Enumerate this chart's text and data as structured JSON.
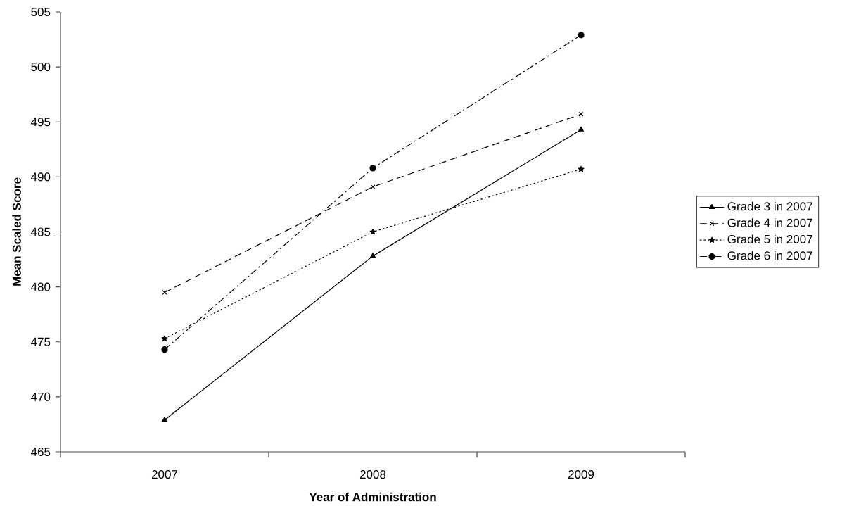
{
  "chart_data": {
    "type": "line",
    "xlabel": "Year of Administration",
    "ylabel": "Mean Scaled Score",
    "categories": [
      "2007",
      "2008",
      "2009"
    ],
    "ylim": [
      465,
      505
    ],
    "yticks": [
      465,
      470,
      475,
      480,
      485,
      490,
      495,
      500,
      505
    ],
    "legend": "right",
    "grid": false,
    "series": [
      {
        "name": "Grade 3 in 2007",
        "color": "#000000",
        "marker": "triangle",
        "line_style": "solid",
        "values": [
          467.9,
          482.8,
          494.3
        ]
      },
      {
        "name": "Grade 4 in 2007",
        "color": "#000000",
        "marker": "cross",
        "line_style": "dashed",
        "values": [
          479.5,
          489.1,
          495.7
        ]
      },
      {
        "name": "Grade 5 in 2007",
        "color": "#000000",
        "marker": "star",
        "line_style": "dotted",
        "values": [
          475.3,
          485.0,
          490.7
        ]
      },
      {
        "name": "Grade 6 in 2007",
        "color": "#000000",
        "marker": "circle",
        "line_style": "dashdot",
        "values": [
          474.3,
          490.8,
          502.9
        ]
      }
    ]
  }
}
